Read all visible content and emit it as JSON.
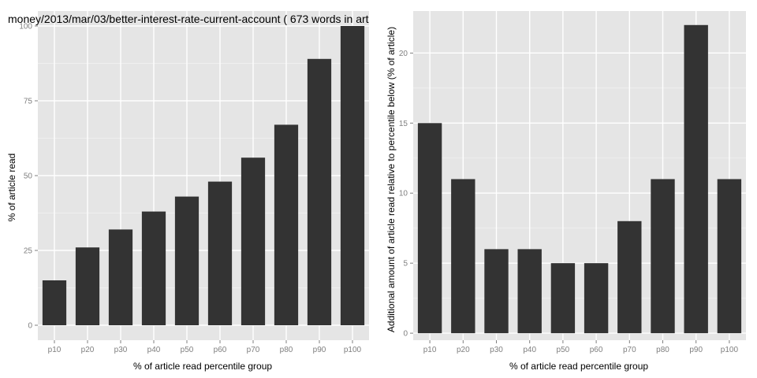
{
  "chart_data": [
    {
      "type": "bar",
      "title": "money/2013/mar/03/better-interest-rate-current-account ( 673 words in art",
      "xlabel": "% of article read percentile group",
      "ylabel": "% of article read",
      "categories": [
        "p10",
        "p20",
        "p30",
        "p40",
        "p50",
        "p60",
        "p70",
        "p80",
        "p90",
        "p100"
      ],
      "values": [
        15,
        26,
        32,
        38,
        43,
        48,
        56,
        67,
        89,
        100
      ],
      "ylim": [
        -5,
        105
      ],
      "yticks": [
        0,
        25,
        50,
        75,
        100
      ],
      "grid": true,
      "legend": "none",
      "bar_color": "#333333",
      "panel_color": "#e5e5e5",
      "grid_color": "#ffffff"
    },
    {
      "type": "bar",
      "title": "",
      "xlabel": "% of article read percentile group",
      "ylabel": "Additional amount of article read relative to percentile below (% of article)",
      "categories": [
        "p10",
        "p20",
        "p30",
        "p40",
        "p50",
        "p60",
        "p70",
        "p80",
        "p90",
        "p100"
      ],
      "values": [
        15,
        11,
        6,
        6,
        5,
        5,
        8,
        11,
        22,
        11
      ],
      "ylim": [
        -0.5,
        23
      ],
      "yticks": [
        0,
        5,
        10,
        15,
        20
      ],
      "grid": true,
      "legend": "none",
      "bar_color": "#333333",
      "panel_color": "#e5e5e5",
      "grid_color": "#ffffff"
    }
  ]
}
